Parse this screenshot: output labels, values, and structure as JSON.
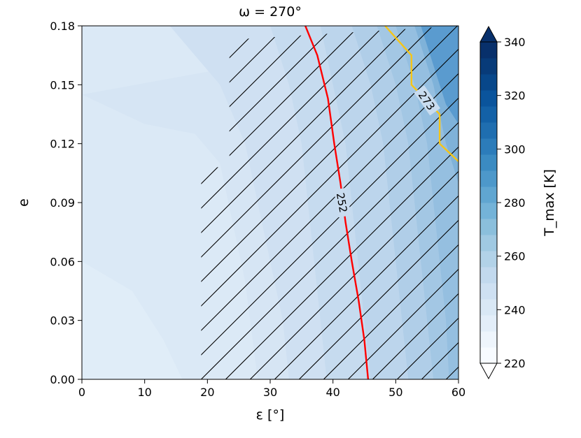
{
  "chart_data": {
    "type": "heatmap",
    "title": "ω = 270°",
    "xlabel": "ε [°]",
    "ylabel": "e",
    "x_ticks": [
      "0",
      "10",
      "20",
      "30",
      "40",
      "50",
      "60"
    ],
    "y_ticks": [
      "0.00",
      "0.03",
      "0.06",
      "0.09",
      "0.12",
      "0.15",
      "0.18"
    ],
    "xlim": [
      0,
      60
    ],
    "ylim": [
      0,
      0.18
    ],
    "colorbar": {
      "label": "T_max [K]",
      "ticks": [
        "220",
        "240",
        "260",
        "280",
        "300",
        "320",
        "340"
      ],
      "range": [
        220,
        340
      ],
      "colormap": "Blues",
      "extend": "both"
    },
    "grid": false,
    "hatched_region_x_min": 19,
    "contours": [
      {
        "level": 252,
        "label": "252",
        "color": "#ff0000",
        "points": [
          [
            35.6,
            0.18
          ],
          [
            37.5,
            0.165
          ],
          [
            39.2,
            0.143
          ],
          [
            40.2,
            0.12
          ],
          [
            41.2,
            0.1
          ],
          [
            42.0,
            0.08
          ],
          [
            43.0,
            0.06
          ],
          [
            44.1,
            0.04
          ],
          [
            45.0,
            0.02
          ],
          [
            45.6,
            0.0
          ]
        ]
      },
      {
        "level": 273,
        "label": "273",
        "color": "#f5c518",
        "points": [
          [
            48.3,
            0.18
          ],
          [
            52.5,
            0.165
          ],
          [
            52.5,
            0.15
          ],
          [
            57.0,
            0.135
          ],
          [
            57.0,
            0.12
          ],
          [
            60.0,
            0.111
          ]
        ]
      }
    ]
  }
}
